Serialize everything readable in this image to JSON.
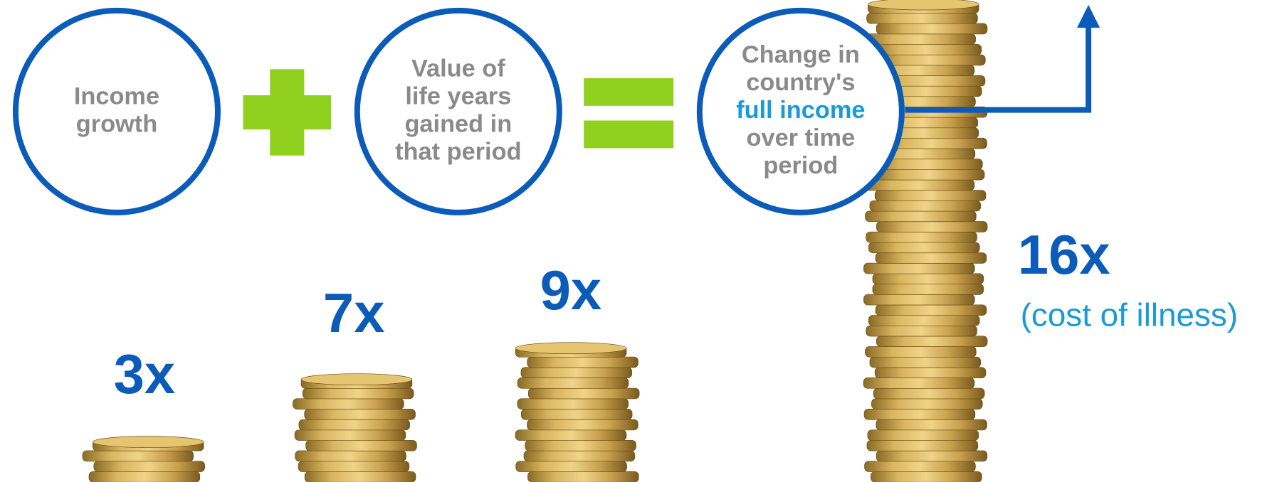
{
  "equation": {
    "term_1": [
      "Income",
      "growth"
    ],
    "term_2": [
      "Value of",
      "life years",
      "gained in",
      "that period"
    ],
    "result": [
      "Change in",
      "country's",
      "full income",
      "over time",
      "period"
    ]
  },
  "multipliers": [
    {
      "label": "3x"
    },
    {
      "label": "7x"
    },
    {
      "label": "9x"
    },
    {
      "label": "16x",
      "note": "(cost of illness)"
    }
  ]
}
